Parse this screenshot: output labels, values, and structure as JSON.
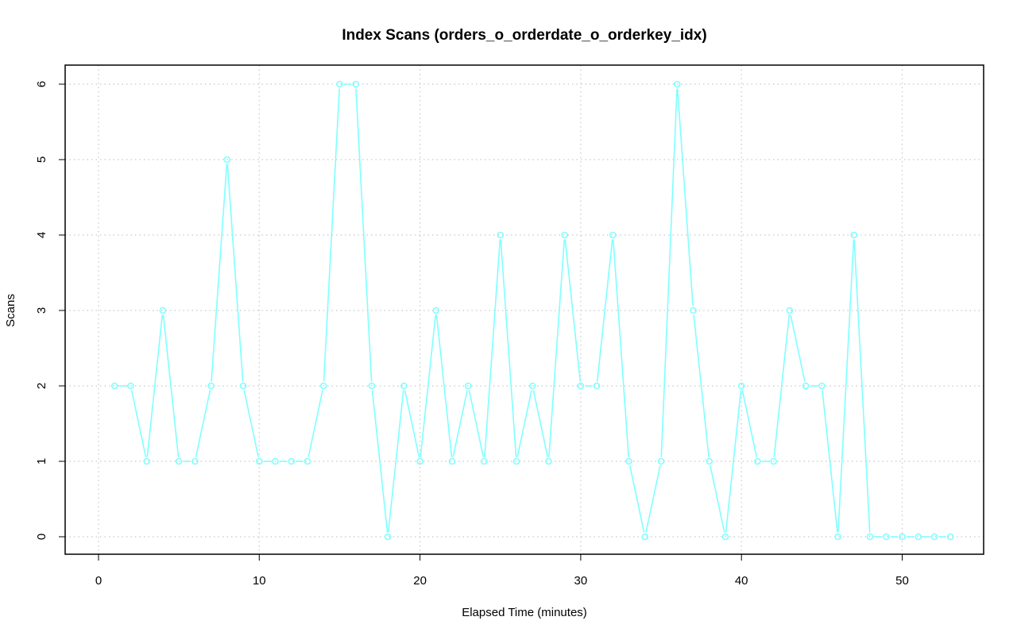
{
  "chart_data": {
    "type": "line",
    "title": "Index Scans (orders_o_orderdate_o_orderkey_idx)",
    "xlabel": "Elapsed Time (minutes)",
    "ylabel": "Scans",
    "xlim": [
      0,
      55
    ],
    "ylim": [
      0,
      6
    ],
    "xticks": [
      0,
      10,
      20,
      30,
      40,
      50
    ],
    "yticks": [
      0,
      1,
      2,
      3,
      4,
      5,
      6
    ],
    "grid": true,
    "line_color": "#7fffff",
    "x": [
      1,
      2,
      3,
      4,
      5,
      6,
      7,
      8,
      9,
      10,
      11,
      12,
      13,
      14,
      15,
      16,
      17,
      18,
      19,
      20,
      21,
      22,
      23,
      24,
      25,
      26,
      27,
      28,
      29,
      30,
      31,
      32,
      33,
      34,
      35,
      36,
      37,
      38,
      39,
      40,
      41,
      42,
      43,
      44,
      45,
      46,
      47,
      48,
      49,
      50,
      51,
      52,
      53
    ],
    "values": [
      2,
      2,
      1,
      3,
      1,
      1,
      2,
      5,
      2,
      1,
      1,
      1,
      1,
      2,
      6,
      6,
      2,
      0,
      2,
      1,
      3,
      1,
      2,
      1,
      4,
      1,
      2,
      1,
      4,
      2,
      2,
      4,
      1,
      0,
      1,
      6,
      3,
      1,
      0,
      2,
      1,
      1,
      3,
      2,
      2,
      0,
      4,
      0,
      0,
      0,
      0,
      0,
      0
    ]
  }
}
